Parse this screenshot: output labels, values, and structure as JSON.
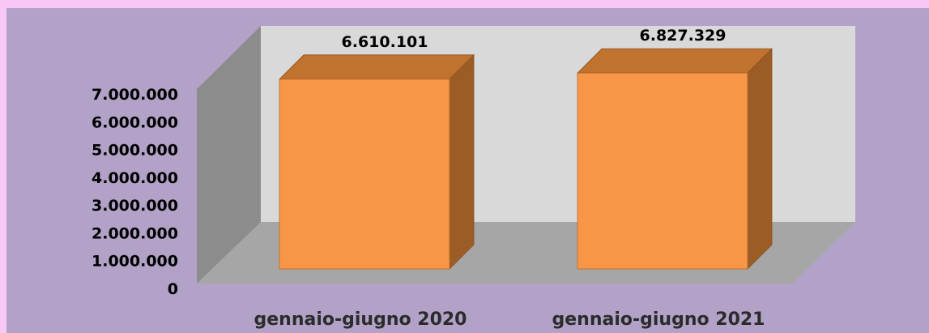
{
  "chart_data": {
    "type": "bar",
    "categories": [
      "gennaio-giugno 2020",
      "gennaio-giugno 2021"
    ],
    "values": [
      6610101,
      6827329
    ],
    "data_labels": [
      "6.610.101",
      "6.827.329"
    ],
    "ylim": [
      0,
      7000000
    ],
    "y_ticks": [
      0,
      1000000,
      2000000,
      3000000,
      4000000,
      5000000,
      6000000,
      7000000
    ],
    "y_tick_labels": [
      "0",
      "1.000.000",
      "2.000.000",
      "3.000.000",
      "4.000.000",
      "5.000.000",
      "6.000.000",
      "7.000.000"
    ],
    "grid": false,
    "legend": "none",
    "style": "3d-column"
  },
  "colors": {
    "page_background": "#f7c8f5",
    "chart_background": "#b3a2c7",
    "back_wall": "#d9d9d9",
    "side_wall": "#8c8c8c",
    "floor": "#a6a6a6",
    "bar_front": "#f79646",
    "bar_top": "#c0722f",
    "bar_side": "#9c5c26"
  }
}
